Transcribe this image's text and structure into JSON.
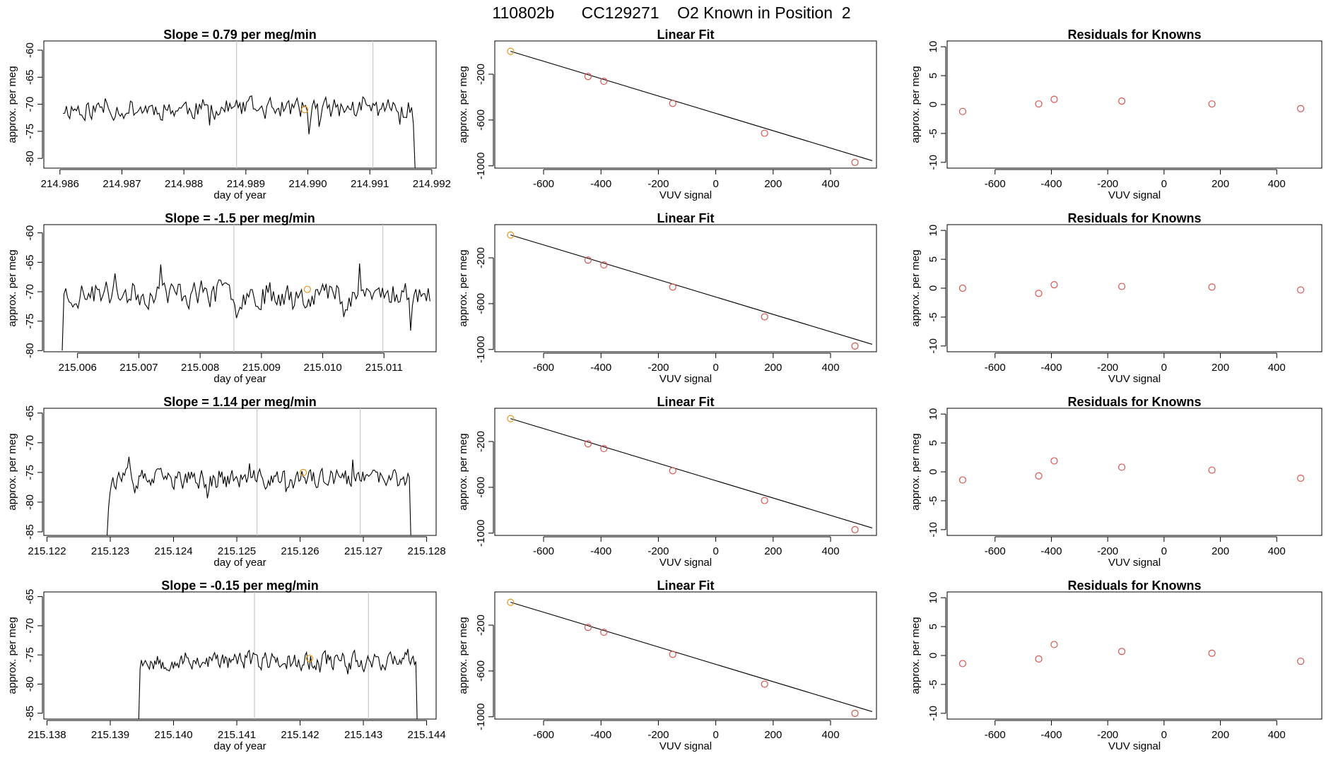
{
  "figure_title": "110802b      CC129271    O2 Known in Position  2",
  "colors": {
    "line": "#000000",
    "frame": "#000000",
    "marker_known_used": "#d9534f",
    "marker_reference": "#e69a1e",
    "vertical_marker": "#c8c8c8",
    "background": "#ffffff"
  },
  "chart_data": [
    {
      "id": "row1-timeseries",
      "type": "line",
      "title": "Slope =  0.79  per meg/min",
      "xlabel": "day of year",
      "ylabel": "approx. per meg",
      "xlim": [
        214.98574,
        214.99207
      ],
      "ylim": [
        -81.8,
        -58.3
      ],
      "xticks": [
        214.986,
        214.987,
        214.988,
        214.989,
        214.99,
        214.991,
        214.992
      ],
      "xtick_labels": [
        "214.986",
        "214.987",
        "214.988",
        "214.989",
        "214.990",
        "214.991",
        "214.992"
      ],
      "yticks": [
        -60,
        -65,
        -70,
        -75,
        -80
      ],
      "ytick_labels": [
        "-60",
        "-65",
        "-70",
        "-75",
        "-80"
      ],
      "x_start": 214.98605,
      "x_end": 214.99173,
      "seed": 11,
      "mean": -70.8,
      "amp": 2.7,
      "end_value": -82.5,
      "vertical_lines": [
        214.98885,
        214.99105
      ],
      "highlight_point": {
        "x": 214.98995,
        "y": -71.0
      }
    },
    {
      "id": "row1-fit",
      "type": "scatter",
      "title": "Linear Fit",
      "xlabel": "VUV signal",
      "ylabel": "approx. per meg",
      "xlim": [
        -770,
        560
      ],
      "ylim": [
        -1020,
        90
      ],
      "xticks": [
        -600,
        -400,
        -200,
        0,
        200,
        400
      ],
      "xtick_labels": [
        "-600",
        "-400",
        "-200",
        "0",
        "200",
        "400"
      ],
      "yticks": [
        -200,
        -600,
        -1000
      ],
      "ytick_labels": [
        "-200",
        "-600",
        "-1000"
      ],
      "fit_line": {
        "x": [
          -715,
          545
        ],
        "y": [
          0,
          -955
        ]
      },
      "points": [
        {
          "x": -715,
          "y": 0,
          "kind": "reference"
        },
        {
          "x": -445,
          "y": -220,
          "kind": "known"
        },
        {
          "x": -390,
          "y": -262,
          "kind": "known"
        },
        {
          "x": -150,
          "y": -455,
          "kind": "known"
        },
        {
          "x": 170,
          "y": -715,
          "kind": "known"
        },
        {
          "x": 485,
          "y": -970,
          "kind": "known"
        }
      ]
    },
    {
      "id": "row1-residuals",
      "type": "scatter",
      "title": "Residuals for Knowns",
      "xlabel": "VUV signal",
      "ylabel": "approx. per meg",
      "xlim": [
        -770,
        560
      ],
      "ylim": [
        -11,
        11
      ],
      "xticks": [
        -600,
        -400,
        -200,
        0,
        200,
        400
      ],
      "xtick_labels": [
        "-600",
        "-400",
        "-200",
        "0",
        "200",
        "400"
      ],
      "yticks": [
        10,
        5,
        0,
        -5,
        -10
      ],
      "ytick_labels": [
        "10",
        "5",
        "0",
        "-5",
        "-10"
      ],
      "points": [
        {
          "x": -715,
          "y": -1.2
        },
        {
          "x": -445,
          "y": 0.1
        },
        {
          "x": -390,
          "y": 0.9
        },
        {
          "x": -150,
          "y": 0.6
        },
        {
          "x": 170,
          "y": 0.1
        },
        {
          "x": 485,
          "y": -0.7
        }
      ]
    },
    {
      "id": "row2-timeseries",
      "type": "line",
      "title": "Slope =  -1.5  per meg/min",
      "xlabel": "day of year",
      "ylabel": "approx. per meg",
      "xlim": [
        215.00545,
        215.01185
      ],
      "ylim": [
        -80.2,
        -58.6
      ],
      "xticks": [
        215.006,
        215.007,
        215.008,
        215.009,
        215.01,
        215.011
      ],
      "xtick_labels": [
        "215.006",
        "215.007",
        "215.008",
        "215.009",
        "215.010",
        "215.011"
      ],
      "yticks": [
        -60,
        -65,
        -70,
        -75,
        -80
      ],
      "ytick_labels": [
        "-60",
        "-65",
        "-70",
        "-75",
        "-80"
      ],
      "x_start": 215.00575,
      "x_end": 215.01175,
      "seed": 23,
      "mean": -70.3,
      "amp": 3.2,
      "start_value": -80.0,
      "vertical_lines": [
        215.00855,
        215.01098
      ],
      "highlight_point": {
        "x": 215.00975,
        "y": -69.6
      }
    },
    {
      "id": "row2-fit",
      "type": "scatter",
      "title": "Linear Fit",
      "xlabel": "VUV signal",
      "ylabel": "approx. per meg",
      "xlim": [
        -770,
        560
      ],
      "ylim": [
        -1020,
        90
      ],
      "xticks": [
        -600,
        -400,
        -200,
        0,
        200,
        400
      ],
      "xtick_labels": [
        "-600",
        "-400",
        "-200",
        "0",
        "200",
        "400"
      ],
      "yticks": [
        -200,
        -600,
        -1000
      ],
      "ytick_labels": [
        "-200",
        "-600",
        "-1000"
      ],
      "fit_line": {
        "x": [
          -715,
          545
        ],
        "y": [
          0,
          -955
        ]
      },
      "points": [
        {
          "x": -715,
          "y": 0,
          "kind": "reference"
        },
        {
          "x": -445,
          "y": -220,
          "kind": "known"
        },
        {
          "x": -390,
          "y": -262,
          "kind": "known"
        },
        {
          "x": -150,
          "y": -455,
          "kind": "known"
        },
        {
          "x": 170,
          "y": -715,
          "kind": "known"
        },
        {
          "x": 485,
          "y": -970,
          "kind": "known"
        }
      ]
    },
    {
      "id": "row2-residuals",
      "type": "scatter",
      "title": "Residuals for Knowns",
      "xlabel": "VUV signal",
      "ylabel": "approx. per meg",
      "xlim": [
        -770,
        560
      ],
      "ylim": [
        -11,
        11
      ],
      "xticks": [
        -600,
        -400,
        -200,
        0,
        200,
        400
      ],
      "xtick_labels": [
        "-600",
        "-400",
        "-200",
        "0",
        "200",
        "400"
      ],
      "yticks": [
        10,
        5,
        0,
        -5,
        -10
      ],
      "ytick_labels": [
        "10",
        "5",
        "0",
        "-5",
        "-10"
      ],
      "points": [
        {
          "x": -715,
          "y": 0.0
        },
        {
          "x": -445,
          "y": -0.9
        },
        {
          "x": -390,
          "y": 0.6
        },
        {
          "x": -150,
          "y": 0.3
        },
        {
          "x": 170,
          "y": 0.2
        },
        {
          "x": 485,
          "y": -0.3
        }
      ]
    },
    {
      "id": "row3-timeseries",
      "type": "line",
      "title": "Slope =  1.14  per meg/min",
      "xlabel": "day of year",
      "ylabel": "approx. per meg",
      "xlim": [
        215.12195,
        215.12815
      ],
      "ylim": [
        -85.6,
        -64.2
      ],
      "xticks": [
        215.122,
        215.123,
        215.124,
        215.125,
        215.126,
        215.127,
        215.128
      ],
      "xtick_labels": [
        "215.122",
        "215.123",
        "215.124",
        "215.125",
        "215.126",
        "215.127",
        "215.128"
      ],
      "yticks": [
        -65,
        -70,
        -75,
        -80,
        -85
      ],
      "ytick_labels": [
        "-65",
        "-70",
        "-75",
        "-80",
        "-85"
      ],
      "x_start": 215.12295,
      "x_end": 215.12775,
      "seed": 37,
      "mean": -76.2,
      "amp": 2.3,
      "start_value": -86.5,
      "end_value": -86.5,
      "vertical_lines": [
        215.12532,
        215.12695
      ],
      "highlight_point": {
        "x": 215.12605,
        "y": -75.0
      }
    },
    {
      "id": "row3-fit",
      "type": "scatter",
      "title": "Linear Fit",
      "xlabel": "VUV signal",
      "ylabel": "approx. per meg",
      "xlim": [
        -770,
        560
      ],
      "ylim": [
        -1020,
        90
      ],
      "xticks": [
        -600,
        -400,
        -200,
        0,
        200,
        400
      ],
      "xtick_labels": [
        "-600",
        "-400",
        "-200",
        "0",
        "200",
        "400"
      ],
      "yticks": [
        -200,
        -600,
        -1000
      ],
      "ytick_labels": [
        "-200",
        "-600",
        "-1000"
      ],
      "fit_line": {
        "x": [
          -715,
          545
        ],
        "y": [
          0,
          -955
        ]
      },
      "points": [
        {
          "x": -715,
          "y": 0,
          "kind": "reference"
        },
        {
          "x": -445,
          "y": -220,
          "kind": "known"
        },
        {
          "x": -390,
          "y": -262,
          "kind": "known"
        },
        {
          "x": -150,
          "y": -455,
          "kind": "known"
        },
        {
          "x": 170,
          "y": -715,
          "kind": "known"
        },
        {
          "x": 485,
          "y": -970,
          "kind": "known"
        }
      ]
    },
    {
      "id": "row3-residuals",
      "type": "scatter",
      "title": "Residuals for Knowns",
      "xlabel": "VUV signal",
      "ylabel": "approx. per meg",
      "xlim": [
        -770,
        560
      ],
      "ylim": [
        -11,
        11
      ],
      "xticks": [
        -600,
        -400,
        -200,
        0,
        200,
        400
      ],
      "xtick_labels": [
        "-600",
        "-400",
        "-200",
        "0",
        "200",
        "400"
      ],
      "yticks": [
        10,
        5,
        0,
        -5,
        -10
      ],
      "ytick_labels": [
        "10",
        "5",
        "0",
        "-5",
        "-10"
      ],
      "points": [
        {
          "x": -715,
          "y": -1.4
        },
        {
          "x": -445,
          "y": -0.7
        },
        {
          "x": -390,
          "y": 1.9
        },
        {
          "x": -150,
          "y": 0.8
        },
        {
          "x": 170,
          "y": 0.3
        },
        {
          "x": 485,
          "y": -1.1
        }
      ]
    },
    {
      "id": "row4-timeseries",
      "type": "line",
      "title": "Slope =  -0.15  per meg/min",
      "xlabel": "day of year",
      "ylabel": "approx. per meg",
      "xlim": [
        215.13795,
        215.14415
      ],
      "ylim": [
        -86.0,
        -64.2
      ],
      "xticks": [
        215.138,
        215.139,
        215.14,
        215.141,
        215.142,
        215.143,
        215.144
      ],
      "xtick_labels": [
        "215.138",
        "215.139",
        "215.140",
        "215.141",
        "215.142",
        "215.143",
        "215.144"
      ],
      "yticks": [
        -65,
        -70,
        -75,
        -80,
        -85
      ],
      "ytick_labels": [
        "-65",
        "-70",
        "-75",
        "-80",
        "-85"
      ],
      "x_start": 215.13945,
      "x_end": 215.14385,
      "seed": 53,
      "mean": -76.0,
      "amp": 2.2,
      "start_value": -87.0,
      "end_value": -87.0,
      "vertical_lines": [
        215.14128,
        215.14308
      ],
      "highlight_point": {
        "x": 215.14215,
        "y": -75.6
      }
    },
    {
      "id": "row4-fit",
      "type": "scatter",
      "title": "Linear Fit",
      "xlabel": "VUV signal",
      "ylabel": "approx. per meg",
      "xlim": [
        -770,
        560
      ],
      "ylim": [
        -1020,
        90
      ],
      "xticks": [
        -600,
        -400,
        -200,
        0,
        200,
        400
      ],
      "xtick_labels": [
        "-600",
        "-400",
        "-200",
        "0",
        "200",
        "400"
      ],
      "yticks": [
        -200,
        -600,
        -1000
      ],
      "ytick_labels": [
        "-200",
        "-600",
        "-1000"
      ],
      "fit_line": {
        "x": [
          -715,
          545
        ],
        "y": [
          0,
          -955
        ]
      },
      "points": [
        {
          "x": -715,
          "y": 0,
          "kind": "reference"
        },
        {
          "x": -445,
          "y": -220,
          "kind": "known"
        },
        {
          "x": -390,
          "y": -262,
          "kind": "known"
        },
        {
          "x": -150,
          "y": -455,
          "kind": "known"
        },
        {
          "x": 170,
          "y": -715,
          "kind": "known"
        },
        {
          "x": 485,
          "y": -970,
          "kind": "known"
        }
      ]
    },
    {
      "id": "row4-residuals",
      "type": "scatter",
      "title": "Residuals for Knowns",
      "xlabel": "VUV signal",
      "ylabel": "approx. per meg",
      "xlim": [
        -770,
        560
      ],
      "ylim": [
        -11,
        11
      ],
      "xticks": [
        -600,
        -400,
        -200,
        0,
        200,
        400
      ],
      "xtick_labels": [
        "-600",
        "-400",
        "-200",
        "0",
        "200",
        "400"
      ],
      "yticks": [
        10,
        5,
        0,
        -5,
        -10
      ],
      "ytick_labels": [
        "10",
        "5",
        "0",
        "-5",
        "-10"
      ],
      "points": [
        {
          "x": -715,
          "y": -1.4
        },
        {
          "x": -445,
          "y": -0.6
        },
        {
          "x": -390,
          "y": 1.9
        },
        {
          "x": -150,
          "y": 0.7
        },
        {
          "x": 170,
          "y": 0.4
        },
        {
          "x": 485,
          "y": -1.0
        }
      ]
    }
  ]
}
